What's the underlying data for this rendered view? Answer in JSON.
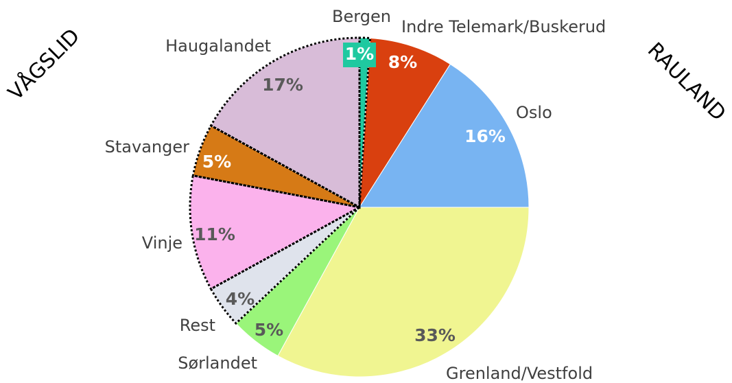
{
  "chart_data": {
    "type": "pie",
    "slices": [
      {
        "name": "Bergen",
        "value": 1,
        "value_label": "1%",
        "color": "#1fc9a0",
        "dotted": true
      },
      {
        "name": "Indre Telemark/Buskerud",
        "value": 8,
        "value_label": "8%",
        "color": "#d9400f",
        "dotted": false
      },
      {
        "name": "Oslo",
        "value": 16,
        "value_label": "16%",
        "color": "#78b4f2",
        "dotted": false
      },
      {
        "name": "Grenland/Vestfold",
        "value": 33,
        "value_label": "33%",
        "color": "#f0f591",
        "dotted": false
      },
      {
        "name": "Sørlandet",
        "value": 5,
        "value_label": "5%",
        "color": "#9af57a",
        "dotted": false
      },
      {
        "name": "Rest",
        "value": 4,
        "value_label": "4%",
        "color": "#dfe3ec",
        "dotted": true
      },
      {
        "name": "Vinje",
        "value": 11,
        "value_label": "11%",
        "color": "#fbb2ec",
        "dotted": true
      },
      {
        "name": "Stavanger",
        "value": 5,
        "value_label": "5%",
        "color": "#d67a16",
        "dotted": true
      },
      {
        "name": "Haugalandet",
        "value": 17,
        "value_label": "17%",
        "color": "#d8bcd8",
        "dotted": true
      }
    ],
    "annotations": [
      "VÅGSLID",
      "RAULAND"
    ]
  }
}
